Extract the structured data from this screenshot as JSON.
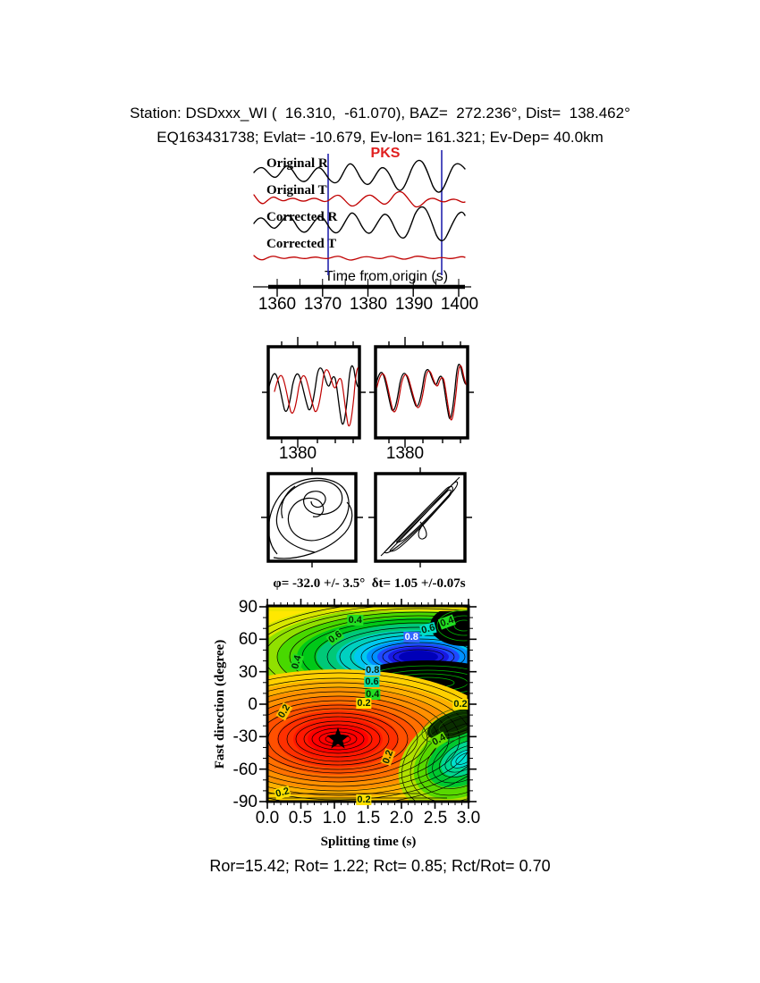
{
  "header": {
    "line1": "Station: DSDxxx_WI (  16.310,  -61.070), BAZ=  272.236°, Dist=  138.462°",
    "line2": "EQ163431738; Evlat= -10.679, Ev-lon= 161.321; Ev-Dep= 40.0km"
  },
  "waveforms": {
    "phase_label": "PKS",
    "traces": [
      {
        "label": "Original R",
        "color": "#000000"
      },
      {
        "label": "Original T",
        "color": "#c00000"
      },
      {
        "label": "Corrected R",
        "color": "#000000"
      },
      {
        "label": "Corrected T",
        "color": "#c00000"
      }
    ],
    "window_marker_color": "#2424ae",
    "time_axis": {
      "label": "Time from origin (s)",
      "ticks": [
        "1360",
        "1370",
        "1380",
        "1390",
        "1400"
      ]
    }
  },
  "compare": {
    "left_tick_label": "1380",
    "right_tick_label": "1380",
    "trace_colors": [
      "#000000",
      "#c00000"
    ]
  },
  "contour": {
    "title": "φ= -32.0 +/- 3.5°  δt= 1.05 +/-0.07s",
    "ylabel": "Fast direction (degree)",
    "xlabel": "Splitting time (s)",
    "yticks": [
      "90",
      "60",
      "30",
      "0",
      "-30",
      "-60",
      "-90"
    ],
    "xticks": [
      "0.0",
      "0.5",
      "1.0",
      "1.5",
      "2.0",
      "2.5",
      "3.0"
    ],
    "best_fit": {
      "phi_deg": -32.0,
      "phi_err_deg": 3.5,
      "dt_s": 1.05,
      "dt_err_s": 0.07
    },
    "labels": [
      {
        "text": "0.4",
        "t": 1.31,
        "phi": 78,
        "rot": 0,
        "bg": "#22dd22"
      },
      {
        "text": "0.4",
        "t": 2.68,
        "phi": 76,
        "rot": -20,
        "bg": "#22dd22"
      },
      {
        "text": "0.6",
        "t": 2.4,
        "phi": 69,
        "rot": -15,
        "bg": "#00e0c8"
      },
      {
        "text": "0.6",
        "t": 1.01,
        "phi": 62,
        "rot": -35,
        "bg": "#22dd22"
      },
      {
        "text": "0.8",
        "t": 2.15,
        "phi": 62,
        "rot": 0,
        "bg": "#3366ff",
        "fg": "#ffffff"
      },
      {
        "text": "0.4",
        "t": 0.44,
        "phi": 39,
        "rot": -75,
        "bg": "#22dd22"
      },
      {
        "text": "0.8",
        "t": 1.57,
        "phi": 31,
        "rot": 0,
        "bg": "#33ccff"
      },
      {
        "text": "0.6",
        "t": 1.56,
        "phi": 21,
        "rot": 0,
        "bg": "#00e0a0"
      },
      {
        "text": "0.4",
        "t": 1.57,
        "phi": 9,
        "rot": 0,
        "bg": "#22dd22"
      },
      {
        "text": "0.2",
        "t": 1.44,
        "phi": 1,
        "rot": 0,
        "bg": "#ffe000"
      },
      {
        "text": "0.2",
        "t": 2.88,
        "phi": 0,
        "rot": 0,
        "bg": "#ffe000"
      },
      {
        "text": "0.2",
        "t": 0.25,
        "phi": -7,
        "rot": -60,
        "bg": "#ffc000"
      },
      {
        "text": "0.4",
        "t": 2.56,
        "phi": -33,
        "rot": -30,
        "bg": "#66dd00"
      },
      {
        "text": "0.2",
        "t": 1.8,
        "phi": -49,
        "rot": -70,
        "bg": "#ffb000"
      },
      {
        "text": "0.2",
        "t": 0.23,
        "phi": -82,
        "rot": -15,
        "bg": "#ffe000"
      },
      {
        "text": "0.2",
        "t": 1.44,
        "phi": -88,
        "rot": 0,
        "bg": "#ffe000"
      }
    ]
  },
  "footer": {
    "stats": "Ror=15.42; Rot= 1.22; Rct= 0.85; Rct/Rot= 0.70"
  },
  "chart_data": [
    {
      "type": "line",
      "title": "PKS radial/transverse waveforms before and after splitting correction",
      "series": [
        {
          "name": "Original R"
        },
        {
          "name": "Original T"
        },
        {
          "name": "Corrected R"
        },
        {
          "name": "Corrected T"
        }
      ],
      "xlabel": "Time from origin (s)",
      "xlim": [
        1355,
        1402
      ],
      "xticks": [
        1360,
        1370,
        1380,
        1390,
        1400
      ],
      "window_markers_s": [
        1371,
        1396
      ],
      "annotations": [
        "PKS"
      ]
    },
    {
      "type": "line",
      "title": "Windowed fast/slow component overlays (black vs red), left=original shifted, right=corrected aligned",
      "xticks": [
        1380,
        1380
      ]
    },
    {
      "type": "scatter",
      "title": "Particle motion: left=elliptical (original), right=linearized (corrected)"
    },
    {
      "type": "heatmap",
      "title": "φ= -32.0 +/- 3.5°  δt= 1.05 +/-0.07s",
      "xlabel": "Splitting time (s)",
      "ylabel": "Fast direction (degree)",
      "xlim": [
        0.0,
        3.0
      ],
      "ylim": [
        -90,
        90
      ],
      "xticks": [
        0.0,
        0.5,
        1.0,
        1.5,
        2.0,
        2.5,
        3.0
      ],
      "yticks": [
        90,
        60,
        30,
        0,
        -30,
        -60,
        -90
      ],
      "contour_levels": [
        0.2,
        0.4,
        0.6,
        0.8
      ],
      "best_fit_point": {
        "splitting_time_s": 1.05,
        "fast_direction_deg": -32.0,
        "marker": "star"
      },
      "grid": false,
      "legend": false
    }
  ]
}
